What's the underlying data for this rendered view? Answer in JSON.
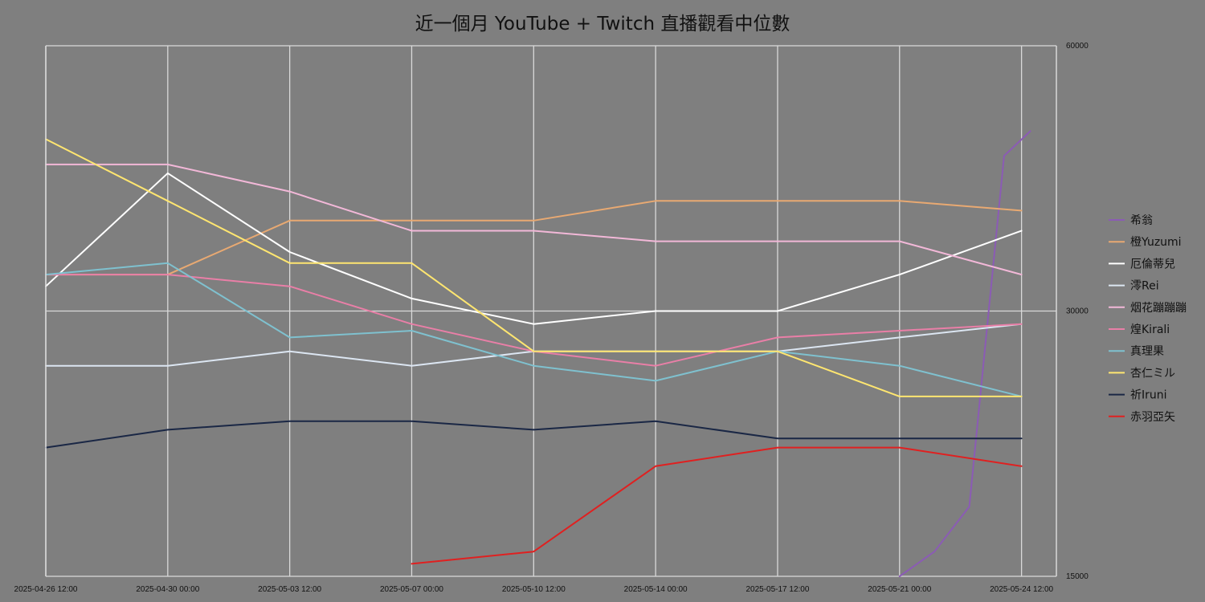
{
  "chart_data": {
    "type": "line",
    "title": "近一個月 YouTube + Twitch 直播觀看中位數",
    "x_range": [
      "2025-04-26 12:00",
      "2025-05-25 12:00"
    ],
    "x_ticks": [
      "2025-04-26 12:00",
      "2025-04-30 00:00",
      "2025-05-03 12:00",
      "2025-05-07 00:00",
      "2025-05-10 12:00",
      "2025-05-14 00:00",
      "2025-05-17 12:00",
      "2025-05-21 00:00",
      "2025-05-24 12:00"
    ],
    "y_scale": "log",
    "ylim": [
      15000,
      60000
    ],
    "y_ticks": [
      15000,
      30000,
      60000
    ],
    "y_axis_side": "right",
    "grid": true,
    "legend_position": "right",
    "series": [
      {
        "name": "希翁",
        "color": "#8b5bb5",
        "points": [
          [
            "2025-05-21 00:00",
            15000
          ],
          [
            "2025-05-22 00:00",
            16000
          ],
          [
            "2025-05-23 00:00",
            18000
          ],
          [
            "2025-05-24 00:00",
            45000
          ],
          [
            "2025-05-24 18:00",
            48000
          ]
        ]
      },
      {
        "name": "橙Yuzumi",
        "color": "#e8a972",
        "points": [
          [
            "2025-04-26 12:00",
            33000
          ],
          [
            "2025-04-30 00:00",
            33000
          ],
          [
            "2025-05-03 12:00",
            38000
          ],
          [
            "2025-05-07 00:00",
            38000
          ],
          [
            "2025-05-10 12:00",
            38000
          ],
          [
            "2025-05-14 00:00",
            40000
          ],
          [
            "2025-05-17 12:00",
            40000
          ],
          [
            "2025-05-21 00:00",
            40000
          ],
          [
            "2025-05-24 12:00",
            39000
          ]
        ]
      },
      {
        "name": "厄倫蒂兒",
        "color": "#ffffff",
        "points": [
          [
            "2025-04-26 12:00",
            32000
          ],
          [
            "2025-04-30 00:00",
            43000
          ],
          [
            "2025-05-03 12:00",
            35000
          ],
          [
            "2025-05-07 00:00",
            31000
          ],
          [
            "2025-05-10 12:00",
            29000
          ],
          [
            "2025-05-14 00:00",
            30000
          ],
          [
            "2025-05-17 12:00",
            30000
          ],
          [
            "2025-05-21 00:00",
            33000
          ],
          [
            "2025-05-24 12:00",
            37000
          ]
        ]
      },
      {
        "name": "澪Rei",
        "color": "#dce6f2",
        "points": [
          [
            "2025-04-26 12:00",
            26000
          ],
          [
            "2025-04-30 00:00",
            26000
          ],
          [
            "2025-05-03 12:00",
            27000
          ],
          [
            "2025-05-07 00:00",
            26000
          ],
          [
            "2025-05-10 12:00",
            27000
          ],
          [
            "2025-05-14 00:00",
            27000
          ],
          [
            "2025-05-17 12:00",
            27000
          ],
          [
            "2025-05-21 00:00",
            28000
          ],
          [
            "2025-05-24 12:00",
            29000
          ]
        ]
      },
      {
        "name": "烟花蹦蹦蹦",
        "color": "#f2b8d8",
        "points": [
          [
            "2025-04-26 12:00",
            44000
          ],
          [
            "2025-04-30 00:00",
            44000
          ],
          [
            "2025-05-03 12:00",
            41000
          ],
          [
            "2025-05-07 00:00",
            37000
          ],
          [
            "2025-05-10 12:00",
            37000
          ],
          [
            "2025-05-14 00:00",
            36000
          ],
          [
            "2025-05-17 12:00",
            36000
          ],
          [
            "2025-05-21 00:00",
            36000
          ],
          [
            "2025-05-24 12:00",
            33000
          ]
        ]
      },
      {
        "name": "煌Kirali",
        "color": "#e97fa7",
        "points": [
          [
            "2025-04-26 12:00",
            33000
          ],
          [
            "2025-04-30 00:00",
            33000
          ],
          [
            "2025-05-03 12:00",
            32000
          ],
          [
            "2025-05-07 00:00",
            29000
          ],
          [
            "2025-05-10 12:00",
            27000
          ],
          [
            "2025-05-14 00:00",
            26000
          ],
          [
            "2025-05-17 12:00",
            28000
          ],
          [
            "2025-05-21 00:00",
            28500
          ],
          [
            "2025-05-24 12:00",
            29000
          ]
        ]
      },
      {
        "name": "真理果",
        "color": "#7fc1cf",
        "points": [
          [
            "2025-04-26 12:00",
            33000
          ],
          [
            "2025-04-30 00:00",
            34000
          ],
          [
            "2025-05-03 12:00",
            28000
          ],
          [
            "2025-05-07 00:00",
            28500
          ],
          [
            "2025-05-10 12:00",
            26000
          ],
          [
            "2025-05-14 00:00",
            25000
          ],
          [
            "2025-05-17 12:00",
            27000
          ],
          [
            "2025-05-21 00:00",
            26000
          ],
          [
            "2025-05-24 12:00",
            24000
          ]
        ]
      },
      {
        "name": "杏仁ミル",
        "color": "#ffe670",
        "points": [
          [
            "2025-04-26 12:00",
            47000
          ],
          [
            "2025-04-30 00:00",
            40000
          ],
          [
            "2025-05-03 12:00",
            34000
          ],
          [
            "2025-05-07 00:00",
            34000
          ],
          [
            "2025-05-10 12:00",
            27000
          ],
          [
            "2025-05-14 00:00",
            27000
          ],
          [
            "2025-05-17 12:00",
            27000
          ],
          [
            "2025-05-21 00:00",
            24000
          ],
          [
            "2025-05-24 12:00",
            24000
          ]
        ]
      },
      {
        "name": "祈Iruni",
        "color": "#1a2745",
        "points": [
          [
            "2025-04-26 12:00",
            21000
          ],
          [
            "2025-04-30 00:00",
            22000
          ],
          [
            "2025-05-03 12:00",
            22500
          ],
          [
            "2025-05-07 00:00",
            22500
          ],
          [
            "2025-05-10 12:00",
            22000
          ],
          [
            "2025-05-14 00:00",
            22500
          ],
          [
            "2025-05-17 12:00",
            21500
          ],
          [
            "2025-05-21 00:00",
            21500
          ],
          [
            "2025-05-24 12:00",
            21500
          ]
        ]
      },
      {
        "name": "赤羽亞矢",
        "color": "#e02020",
        "points": [
          [
            "2025-05-07 00:00",
            15500
          ],
          [
            "2025-05-10 12:00",
            16000
          ],
          [
            "2025-05-14 00:00",
            20000
          ],
          [
            "2025-05-17 12:00",
            21000
          ],
          [
            "2025-05-21 00:00",
            21000
          ],
          [
            "2025-05-24 12:00",
            20000
          ]
        ]
      }
    ]
  }
}
